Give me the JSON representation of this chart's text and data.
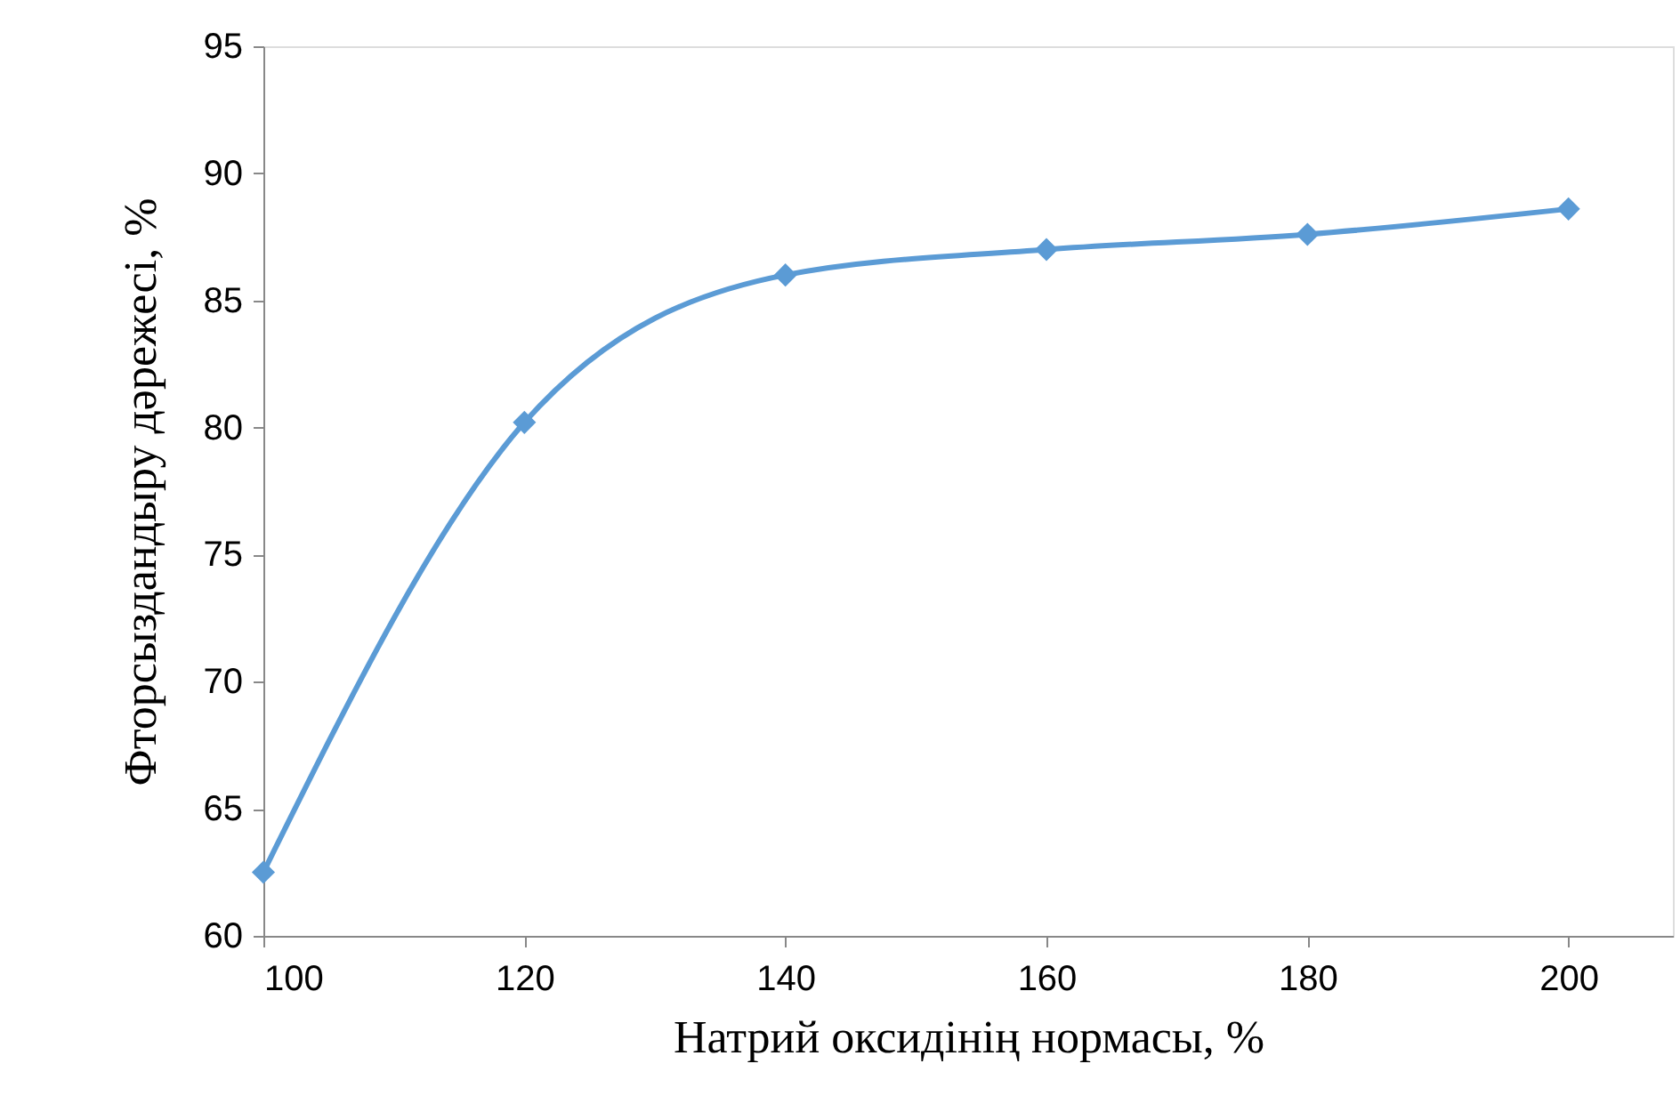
{
  "chart_data": {
    "type": "line",
    "xlabel": "Натрий оксидінің нормасы, %",
    "ylabel": "Фторсыздандыру дәрежесі, %",
    "x": [
      100,
      120,
      140,
      160,
      180,
      200
    ],
    "series": [
      {
        "color": "#5b9bd5",
        "values": [
          62.5,
          80.2,
          86,
          87,
          87.6,
          88.6
        ]
      }
    ],
    "xlim": [
      100,
      208
    ],
    "xticks": [
      100,
      120,
      140,
      160,
      180,
      200
    ],
    "ylim": [
      60,
      95
    ],
    "yticks": [
      60,
      65,
      70,
      75,
      80,
      85,
      90,
      95
    ],
    "grid": false,
    "marker": "diamond",
    "line_style": "solid"
  }
}
